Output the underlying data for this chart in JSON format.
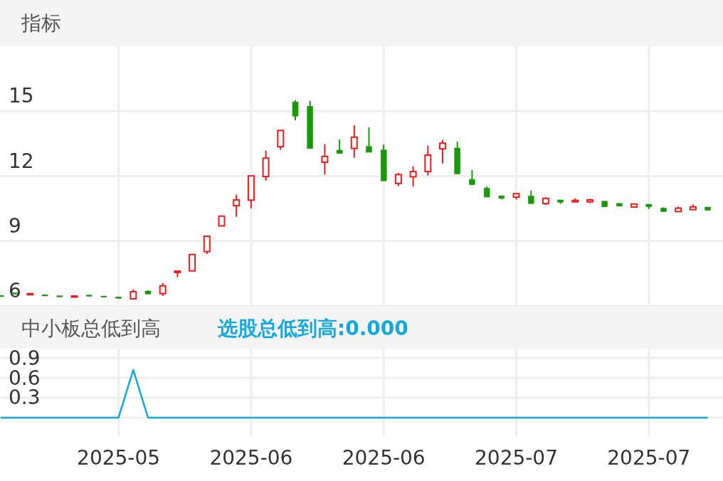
{
  "chart_data": [
    {
      "type": "candlestick",
      "title": "指标",
      "tick_labels": "y",
      "grid": true,
      "categories": [
        null,
        null,
        null,
        null,
        null,
        null,
        null,
        null,
        "2025-05",
        null,
        null,
        null,
        null,
        null,
        null,
        null,
        null,
        "2025-06",
        null,
        null,
        null,
        null,
        null,
        null,
        null,
        null,
        "2025-06",
        null,
        null,
        null,
        null,
        null,
        null,
        null,
        null,
        "2025-07",
        null,
        null,
        null,
        null,
        null,
        null,
        null,
        null,
        "2025-07",
        null,
        null,
        null,
        null
      ],
      "ylim": [
        6,
        18
      ],
      "yticks": [
        6,
        9,
        12,
        15
      ],
      "series": [
        {
          "colors": [
            "#17990a",
            "#17990a",
            "#ee1b1b",
            "#17990a",
            "#17990a",
            "#ee1b1b",
            "#17990a",
            "#17990a",
            "#17990a",
            "#ee1b1b",
            "#17990a",
            "#ee1b1b",
            "#ee1b1b",
            "#ee1b1b",
            "#ee1b1b",
            "#ee1b1b",
            "#ee1b1b",
            "#ee1b1b",
            "#ee1b1b",
            "#ee1b1b",
            "#17990a",
            "#17990a",
            "#ee1b1b",
            "#17990a",
            "#ee1b1b",
            "#17990a",
            "#17990a",
            "#ee1b1b",
            "#ee1b1b",
            "#ee1b1b",
            "#ee1b1b",
            "#17990a",
            "#17990a",
            "#17990a",
            "#17990a",
            "#ee1b1b",
            "#17990a",
            "#ee1b1b",
            "#17990a",
            "#ee1b1b",
            "#ee1b1b",
            "#17990a",
            "#17990a",
            "#ee1b1b",
            "#17990a",
            "#17990a",
            "#ee1b1b",
            "#ee1b1b",
            "#17990a"
          ],
          "ohlc": [
            [
              6.49,
              6.49,
              6.43,
              6.43
            ],
            [
              6.61,
              6.61,
              6.55,
              6.55
            ],
            [
              6.52,
              6.57,
              6.52,
              6.57
            ],
            [
              6.52,
              6.52,
              6.46,
              6.46
            ],
            [
              6.47,
              6.47,
              6.45,
              6.45
            ],
            [
              6.42,
              6.47,
              6.4,
              6.46
            ],
            [
              6.5,
              6.5,
              6.45,
              6.45
            ],
            [
              6.46,
              6.46,
              6.42,
              6.42
            ],
            [
              6.42,
              6.42,
              6.35,
              6.35
            ],
            [
              6.33,
              6.76,
              6.33,
              6.66
            ],
            [
              6.69,
              6.72,
              6.55,
              6.55
            ],
            [
              6.57,
              7.07,
              6.46,
              6.93
            ],
            [
              7.55,
              7.61,
              7.33,
              7.61
            ],
            [
              7.62,
              8.38,
              7.62,
              8.38
            ],
            [
              8.51,
              9.22,
              8.4,
              9.22
            ],
            [
              9.7,
              10.15,
              9.7,
              10.15
            ],
            [
              10.63,
              11.14,
              10.12,
              10.9
            ],
            [
              10.89,
              12.01,
              10.51,
              12.01
            ],
            [
              11.98,
              13.18,
              11.79,
              12.83
            ],
            [
              13.36,
              14.11,
              13.21,
              14.11
            ],
            [
              15.43,
              15.51,
              14.58,
              14.77
            ],
            [
              15.23,
              15.48,
              13.27,
              13.27
            ],
            [
              12.64,
              13.48,
              12.07,
              12.91
            ],
            [
              13.2,
              13.69,
              13.04,
              13.04
            ],
            [
              13.28,
              14.35,
              12.85,
              13.8
            ],
            [
              13.37,
              14.25,
              13.1,
              13.1
            ],
            [
              13.21,
              13.46,
              11.78,
              11.78
            ],
            [
              11.66,
              12.15,
              11.54,
              12.07
            ],
            [
              11.97,
              12.45,
              11.52,
              12.21
            ],
            [
              12.21,
              13.4,
              12.03,
              12.97
            ],
            [
              13.26,
              13.68,
              12.58,
              13.52
            ],
            [
              13.3,
              13.59,
              12.1,
              12.1
            ],
            [
              11.85,
              12.28,
              11.6,
              11.6
            ],
            [
              11.44,
              11.52,
              11.03,
              11.03
            ],
            [
              11.09,
              11.09,
              10.92,
              10.97
            ],
            [
              11.03,
              11.19,
              10.92,
              11.19
            ],
            [
              11.08,
              11.33,
              10.73,
              10.73
            ],
            [
              10.73,
              11.02,
              10.67,
              10.97
            ],
            [
              10.9,
              10.9,
              10.72,
              10.79
            ],
            [
              10.81,
              10.97,
              10.81,
              10.88
            ],
            [
              10.81,
              10.96,
              10.75,
              10.9
            ],
            [
              10.84,
              10.84,
              10.58,
              10.58
            ],
            [
              10.74,
              10.74,
              10.61,
              10.61
            ],
            [
              10.57,
              10.71,
              10.57,
              10.71
            ],
            [
              10.7,
              10.7,
              10.48,
              10.58
            ],
            [
              10.52,
              10.56,
              10.36,
              10.36
            ],
            [
              10.36,
              10.59,
              10.36,
              10.52
            ],
            [
              10.45,
              10.69,
              10.45,
              10.58
            ],
            [
              10.57,
              10.57,
              10.42,
              10.42
            ]
          ]
        }
      ]
    },
    {
      "type": "line",
      "title": "中小板总低到高",
      "grid": true,
      "legend": "top left",
      "categories": [
        null,
        null,
        null,
        null,
        null,
        null,
        null,
        null,
        "2025-05",
        null,
        null,
        null,
        null,
        null,
        null,
        null,
        null,
        "2025-06",
        null,
        null,
        null,
        null,
        null,
        null,
        null,
        null,
        "2025-06",
        null,
        null,
        null,
        null,
        null,
        null,
        null,
        null,
        "2025-07",
        null,
        null,
        null,
        null,
        null,
        null,
        null,
        null,
        "2025-07",
        null,
        null,
        null,
        null
      ],
      "ylim": [
        -0.28,
        1.04
      ],
      "yticks": [
        {
          "value": 0,
          "label": null
        },
        0.3,
        0.6,
        0.9
      ],
      "series": [
        {
          "name": "选股总低到高:0.000",
          "color": "#12a8e0",
          "values": [
            0,
            0,
            0,
            0,
            0,
            0,
            0,
            0,
            0,
            0.72,
            0,
            0,
            0,
            0,
            0,
            0,
            0,
            0,
            0,
            0,
            0,
            0,
            0,
            0,
            0,
            0,
            0,
            0,
            0,
            0,
            0,
            0,
            0,
            0,
            0,
            0,
            0,
            0,
            0,
            0,
            0,
            0,
            0,
            0,
            0,
            0,
            0,
            0,
            0
          ]
        }
      ]
    }
  ]
}
